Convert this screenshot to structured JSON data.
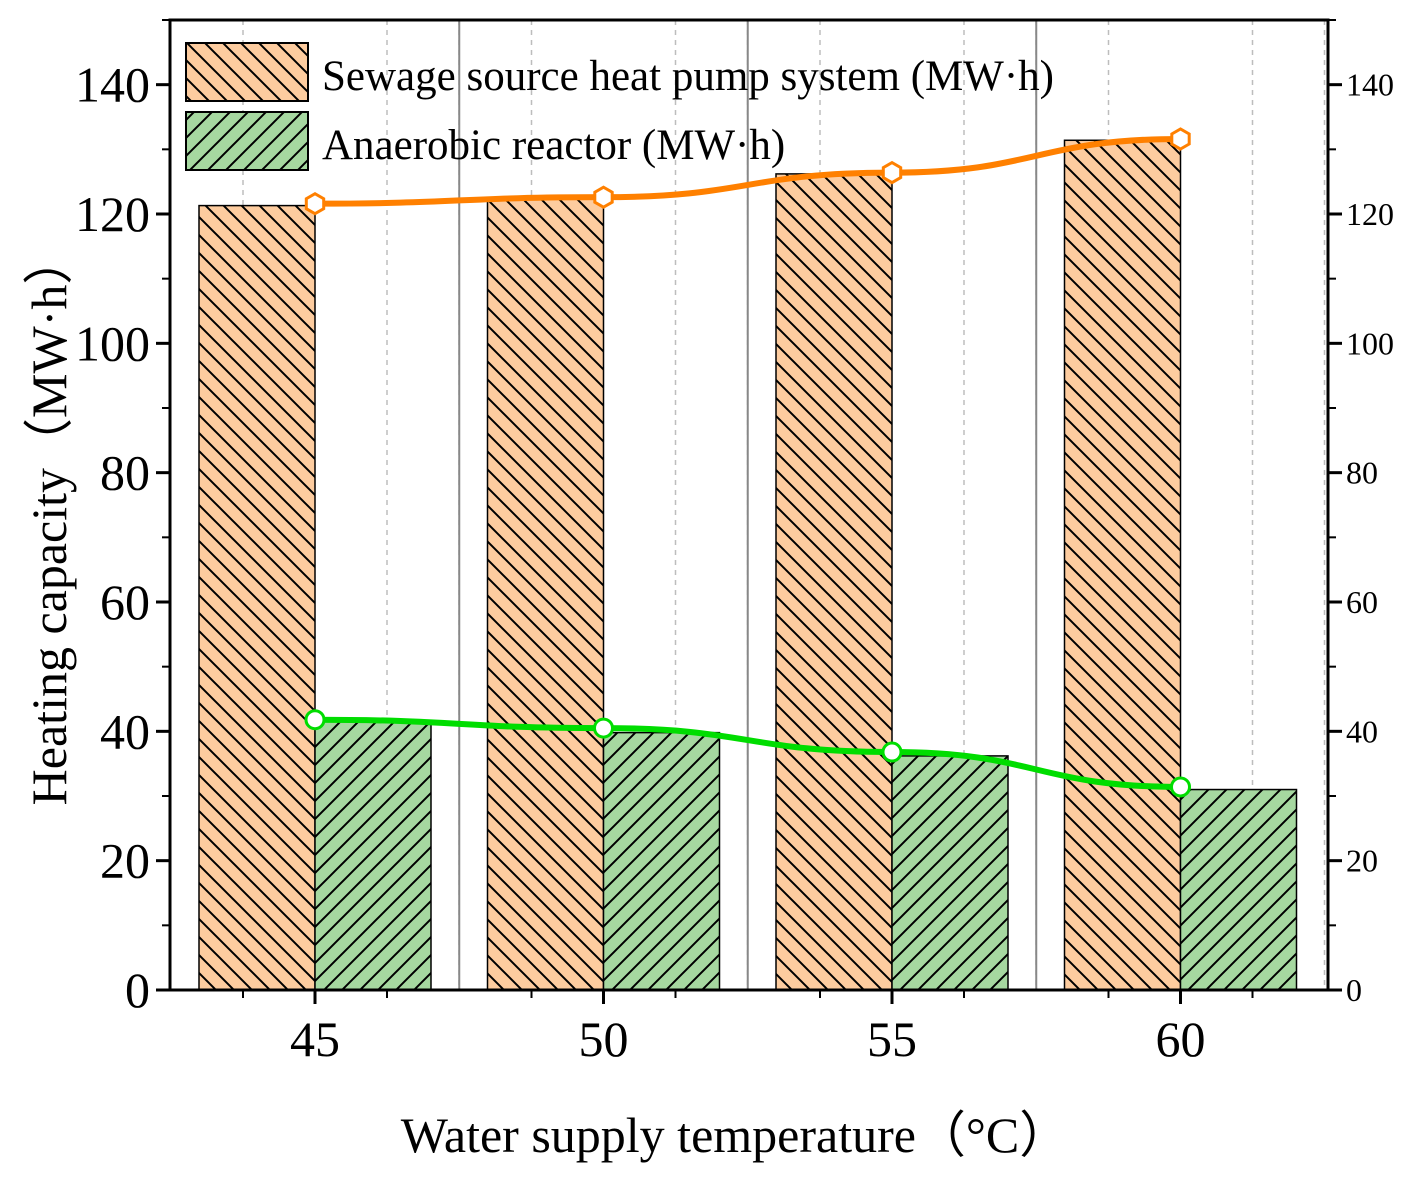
{
  "chart_data": {
    "type": "bar",
    "categories": [
      "45",
      "50",
      "55",
      "60"
    ],
    "series": [
      {
        "name": "Sewage source heat pump system (MW·h)",
        "values": [
          121.3,
          122.3,
          126.2,
          131.4
        ],
        "fill": "#FDCC9F",
        "hatch": "backslash",
        "line_color": "#FF8000",
        "marker": "hexagon-open"
      },
      {
        "name": "Anaerobic reactor (MW·h)",
        "values": [
          41.6,
          39.8,
          36.2,
          31.0
        ],
        "fill": "#A6D8A0",
        "hatch": "slash",
        "line_color": "#00DD00",
        "marker": "circle-open"
      }
    ],
    "line_overlay_values": [
      [
        121.6,
        122.6,
        126.4,
        131.6
      ],
      [
        41.8,
        40.5,
        36.8,
        31.4
      ]
    ],
    "xlabel": "Water supply temperature（°C）",
    "ylabel": "Heating capacity（MW·h）",
    "ylim": [
      0,
      150
    ],
    "y_ticks": [
      "0",
      "20",
      "40",
      "60",
      "80",
      "100",
      "120",
      "140"
    ],
    "y_right_ticks": [
      "0",
      "20",
      "40",
      "60",
      "80",
      "100",
      "120",
      "140"
    ],
    "grid": "vertical",
    "legend_position": "top-left"
  }
}
